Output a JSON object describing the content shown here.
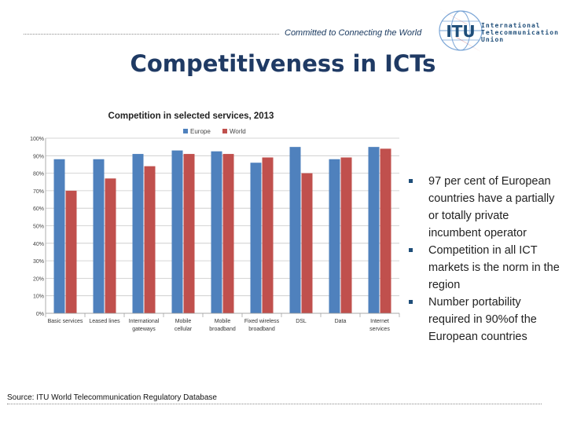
{
  "header": {
    "tagline": "Committed to Connecting the World",
    "logo_text": "ITU",
    "org_name": "International\nTelecommunication\nUnion"
  },
  "slide": {
    "title": "Competitiveness in ICTs",
    "bullets": [
      "97 per cent of European countries have a partially or totally private incumbent operator",
      "Competition in all ICT markets is the norm in the region",
      "Number portability required in 90%of the European countries"
    ],
    "source": "Source: ITU World Telecommunication Regulatory Database"
  },
  "colors": {
    "europe": "#4f81bd",
    "world": "#c0504d",
    "title": "#1f3a64"
  },
  "chart_data": {
    "type": "bar",
    "title": "Competition in selected services, 2013",
    "categories": [
      "Basic services",
      "Leased lines",
      "International gateways",
      "Mobile cellular",
      "Mobile broadband",
      "Fixed wireless broadband",
      "DSL",
      "Data",
      "Internet services"
    ],
    "series": [
      {
        "name": "Europe",
        "values": [
          88,
          88,
          91,
          93,
          92.5,
          86,
          95,
          88,
          95
        ]
      },
      {
        "name": "World",
        "values": [
          70,
          77,
          84,
          91,
          91,
          89,
          80,
          89,
          94
        ]
      }
    ],
    "yticks": [
      "0%",
      "10%",
      "20%",
      "30%",
      "40%",
      "50%",
      "60%",
      "70%",
      "80%",
      "90%",
      "100%"
    ],
    "ylim": [
      0,
      100
    ],
    "grid": true,
    "legend": "top-center"
  }
}
